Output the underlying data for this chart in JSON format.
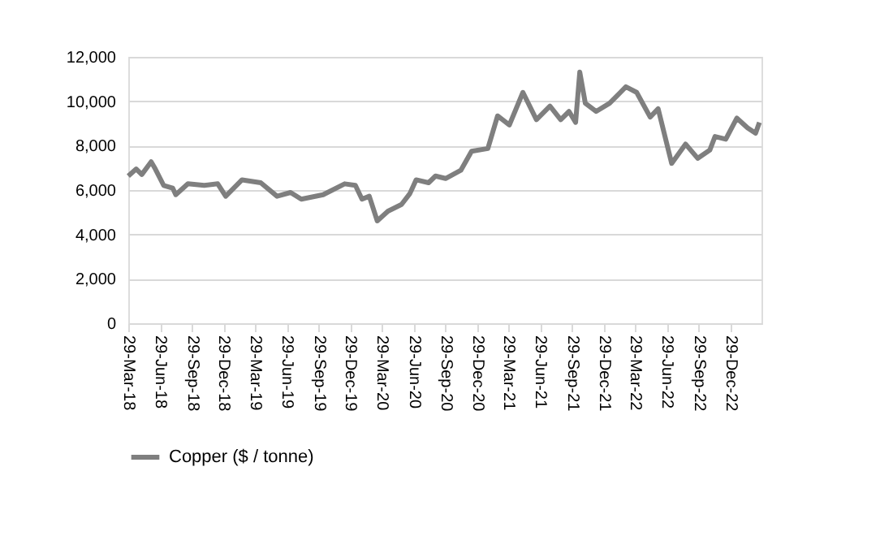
{
  "chart_data": {
    "type": "line",
    "x": [
      "2018-03-29",
      "2018-04-21",
      "2018-05-07",
      "2018-06-03",
      "2018-06-15",
      "2018-07-09",
      "2018-08-04",
      "2018-08-13",
      "2018-09-17",
      "2018-11-03",
      "2018-12-12",
      "2019-01-04",
      "2019-02-20",
      "2019-04-15",
      "2019-06-01",
      "2019-07-10",
      "2019-08-10",
      "2019-10-12",
      "2019-12-13",
      "2020-01-13",
      "2020-02-01",
      "2020-02-22",
      "2020-03-16",
      "2020-04-16",
      "2020-05-25",
      "2020-06-18",
      "2020-07-06",
      "2020-08-11",
      "2020-08-31",
      "2020-09-29",
      "2020-11-12",
      "2020-12-13",
      "2021-01-29",
      "2021-02-26",
      "2021-04-01",
      "2021-05-10",
      "2021-06-18",
      "2021-07-27",
      "2021-08-27",
      "2021-09-20",
      "2021-10-09",
      "2021-10-21",
      "2021-11-06",
      "2021-12-07",
      "2022-01-15",
      "2022-03-03",
      "2022-04-03",
      "2022-05-12",
      "2022-06-04",
      "2022-07-13",
      "2022-08-22",
      "2022-09-26",
      "2022-10-31",
      "2022-11-15",
      "2022-12-16",
      "2023-01-17",
      "2023-02-17",
      "2023-03-12",
      "2023-03-23"
    ],
    "series": [
      {
        "name": "Copper ($ / tonne)",
        "color": "#7f7f7f",
        "values": [
          6630,
          6950,
          6700,
          7270,
          6950,
          6210,
          6090,
          5790,
          6280,
          6210,
          6280,
          5720,
          6460,
          6330,
          5720,
          5890,
          5590,
          5790,
          6280,
          6210,
          5590,
          5720,
          4610,
          5050,
          5350,
          5840,
          6460,
          6330,
          6630,
          6520,
          6890,
          7750,
          7870,
          9340,
          8930,
          10400,
          9170,
          9780,
          9170,
          9540,
          9050,
          11310,
          9910,
          9540,
          9910,
          10650,
          10400,
          9290,
          9660,
          7200,
          8070,
          7430,
          7800,
          8410,
          8290,
          9240,
          8800,
          8560,
          9050
        ]
      }
    ],
    "xlim": [
      "2018-03-29",
      "2023-03-29"
    ],
    "xticks": [
      {
        "value": "2018-03-29",
        "label": "29-Mar-18"
      },
      {
        "value": "2018-06-29",
        "label": "29-Jun-18"
      },
      {
        "value": "2018-09-29",
        "label": "29-Sep-18"
      },
      {
        "value": "2018-12-29",
        "label": "29-Dec-18"
      },
      {
        "value": "2019-03-29",
        "label": "29-Mar-19"
      },
      {
        "value": "2019-06-29",
        "label": "29-Jun-19"
      },
      {
        "value": "2019-09-29",
        "label": "29-Sep-19"
      },
      {
        "value": "2019-12-29",
        "label": "29-Dec-19"
      },
      {
        "value": "2020-03-29",
        "label": "29-Mar-20"
      },
      {
        "value": "2020-06-29",
        "label": "29-Jun-20"
      },
      {
        "value": "2020-09-29",
        "label": "29-Sep-20"
      },
      {
        "value": "2020-12-29",
        "label": "29-Dec-20"
      },
      {
        "value": "2021-03-29",
        "label": "29-Mar-21"
      },
      {
        "value": "2021-06-29",
        "label": "29-Jun-21"
      },
      {
        "value": "2021-09-29",
        "label": "29-Sep-21"
      },
      {
        "value": "2021-12-29",
        "label": "29-Dec-21"
      },
      {
        "value": "2022-03-29",
        "label": "29-Mar-22"
      },
      {
        "value": "2022-06-29",
        "label": "29-Jun-22"
      },
      {
        "value": "2022-09-29",
        "label": "29-Sep-22"
      },
      {
        "value": "2022-12-29",
        "label": "29-Dec-22"
      }
    ],
    "ylim": [
      0,
      12000
    ],
    "yticks": [
      0,
      {
        "value": 2000,
        "label": "2,000"
      },
      {
        "value": 4000,
        "label": "4,000"
      },
      {
        "value": 6000,
        "label": "6,000"
      },
      {
        "value": 8000,
        "label": "8,000"
      },
      {
        "value": 10000,
        "label": "10,000"
      },
      {
        "value": 12000,
        "label": "12,000"
      }
    ],
    "grid": "y",
    "legend": "bottom",
    "marker": "none",
    "line_style": "solid"
  }
}
